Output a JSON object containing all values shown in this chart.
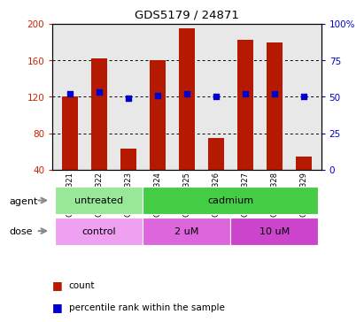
{
  "title": "GDS5179 / 24871",
  "samples": [
    "GSM775321",
    "GSM775322",
    "GSM775323",
    "GSM775324",
    "GSM775325",
    "GSM775326",
    "GSM775327",
    "GSM775328",
    "GSM775329"
  ],
  "counts": [
    120,
    162,
    63,
    160,
    195,
    75,
    182,
    180,
    55
  ],
  "percentile_ranks": [
    52,
    53,
    49,
    51,
    52,
    50,
    52,
    52,
    50
  ],
  "ylim_left": [
    40,
    200
  ],
  "ylim_right": [
    0,
    100
  ],
  "yticks_left": [
    40,
    80,
    120,
    160,
    200
  ],
  "yticks_right": [
    0,
    25,
    50,
    75,
    100
  ],
  "ytick_labels_right": [
    "0",
    "25",
    "50",
    "75",
    "100%"
  ],
  "bar_color": "#b51a00",
  "dot_color": "#0000cc",
  "agent_groups": [
    {
      "label": "untreated",
      "start": 0,
      "end": 3,
      "color": "#98e898"
    },
    {
      "label": "cadmium",
      "start": 3,
      "end": 9,
      "color": "#44cc44"
    }
  ],
  "dose_groups": [
    {
      "label": "control",
      "start": 0,
      "end": 3,
      "color": "#f0a0f0"
    },
    {
      "label": "2 uM",
      "start": 3,
      "end": 6,
      "color": "#dd66dd"
    },
    {
      "label": "10 uM",
      "start": 6,
      "end": 9,
      "color": "#cc44cc"
    }
  ],
  "legend_count_label": "count",
  "legend_pct_label": "percentile rank within the sample",
  "xlabel_agent": "agent",
  "xlabel_dose": "dose",
  "left_axis_color": "#cc2200",
  "right_axis_color": "#0000cc",
  "bar_bottom": 40,
  "bg_color": "#e8e8e8",
  "arrow_color": "#888888"
}
